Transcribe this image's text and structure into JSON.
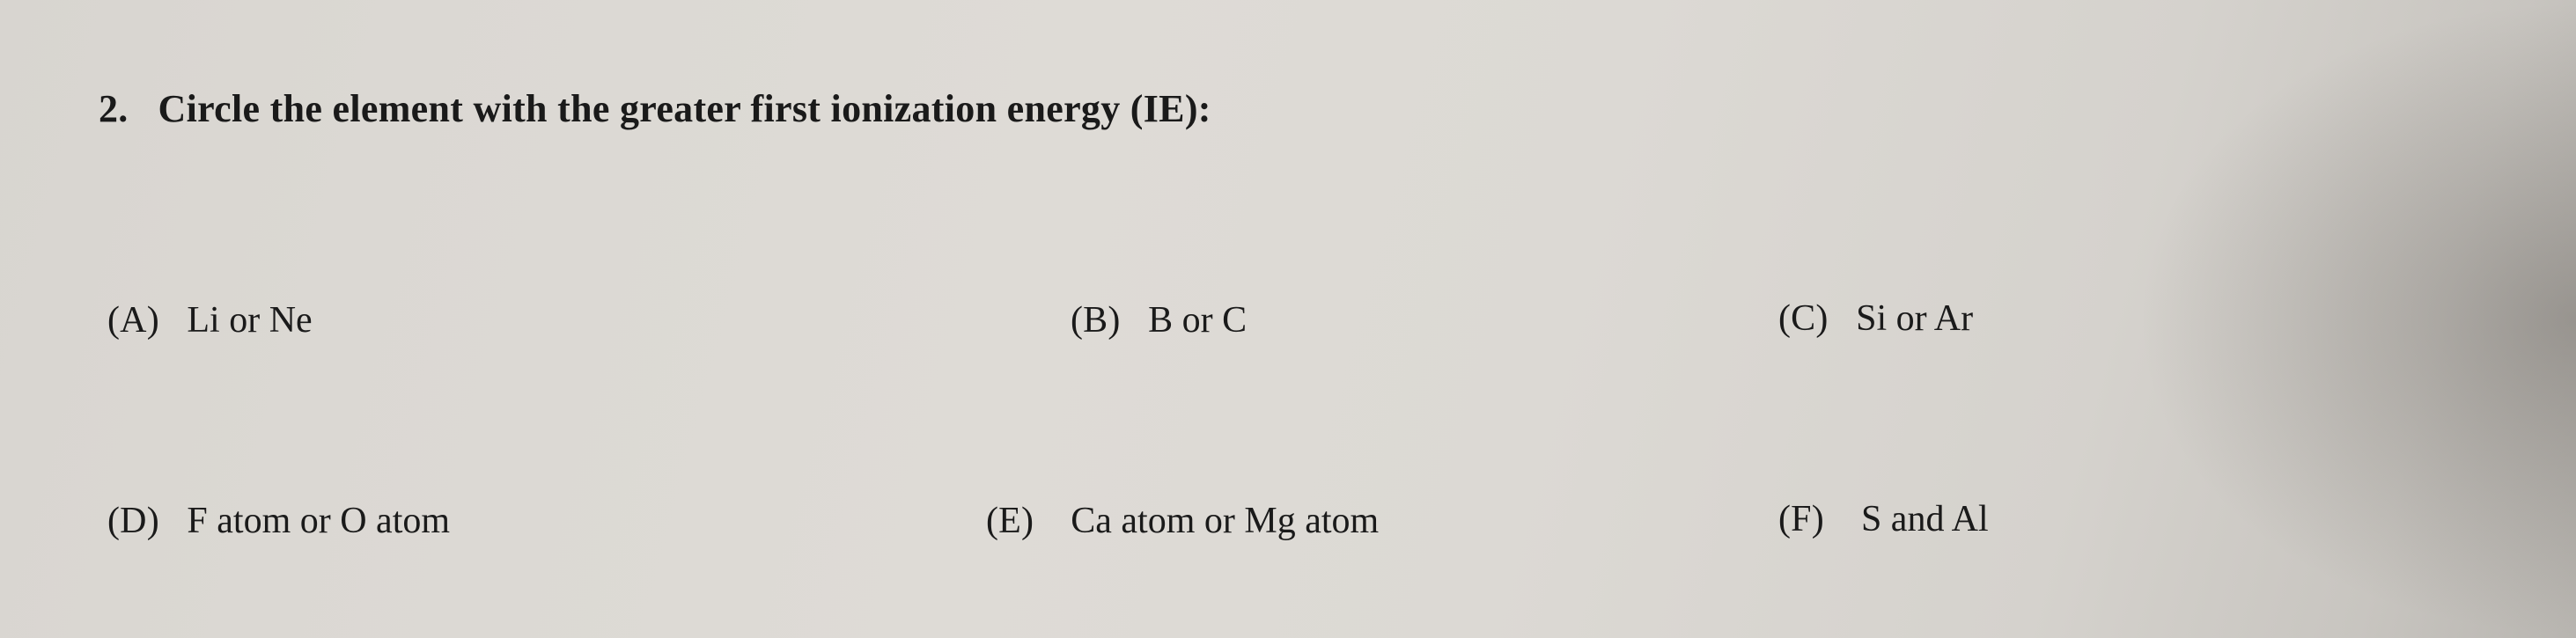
{
  "question": {
    "number": "2.",
    "prompt": "Circle the element with the greater first ionization energy (IE):"
  },
  "options": {
    "a": {
      "label": "(A)",
      "text": "Li or Ne"
    },
    "b": {
      "label": "(B)",
      "text": "B or C"
    },
    "c": {
      "label": "(C)",
      "text": "Si  or Ar"
    },
    "d": {
      "label": "(D)",
      "text": "F atom or O atom"
    },
    "e": {
      "label": "(E)",
      "text": "Ca atom or Mg atom"
    },
    "f": {
      "label": "(F)",
      "text": "S and Al"
    }
  }
}
